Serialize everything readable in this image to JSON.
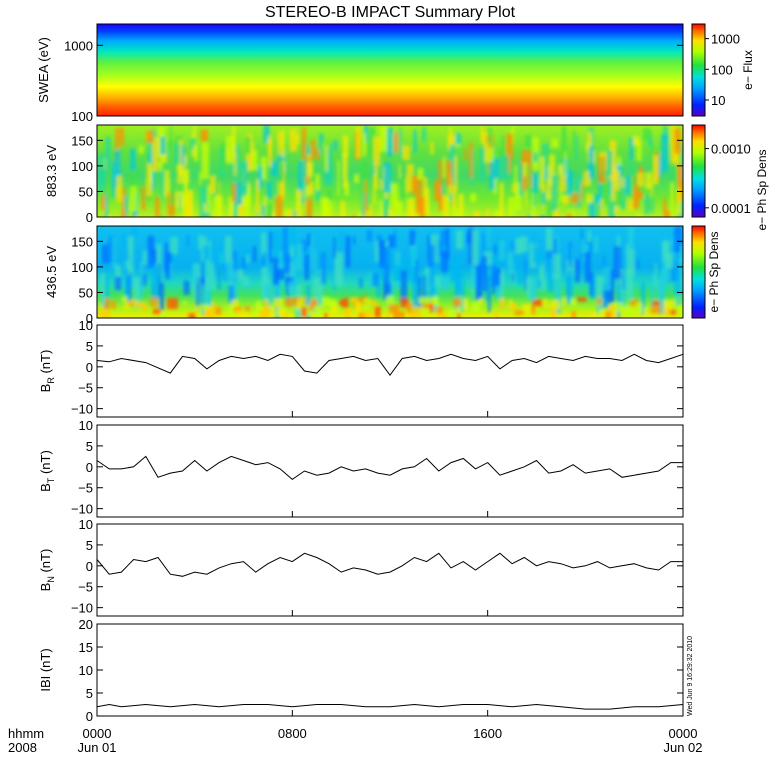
{
  "chart_data": [
    {
      "type": "heatmap",
      "title": "STEREO-B IMPACT Summary Plot",
      "ylabel": "SWEA (eV)",
      "yscale": "log",
      "ylim": [
        100,
        2000
      ],
      "yticks": [
        {
          "v": 100,
          "label": "100"
        },
        {
          "v": 1000,
          "label": "1000"
        }
      ],
      "colorbar_label": "e− Flux",
      "colorbar_scale": "log",
      "colorbar_range": [
        3,
        3000
      ],
      "colorbar_ticks": [
        {
          "v": 10,
          "label": "10"
        },
        {
          "v": 100,
          "label": "100"
        },
        {
          "v": 1000,
          "label": "1000"
        }
      ]
    },
    {
      "type": "heatmap",
      "ylabel": "883.3 eV",
      "ylim": [
        0,
        180
      ],
      "yticks": [
        {
          "v": 0,
          "label": "0"
        },
        {
          "v": 50,
          "label": "50"
        },
        {
          "v": 100,
          "label": "100"
        },
        {
          "v": 150,
          "label": "150"
        }
      ],
      "colorbar_label": "e− Ph Sp Dens",
      "colorbar_scale": "log",
      "colorbar_range": [
        7e-05,
        0.0025
      ],
      "colorbar_ticks": [
        {
          "v": 0.0001,
          "label": "0.0001"
        },
        {
          "v": 0.001,
          "label": "0.0010"
        }
      ]
    },
    {
      "type": "heatmap",
      "ylabel": "436.5 eV",
      "ylim": [
        0,
        180
      ],
      "yticks": [
        {
          "v": 0,
          "label": "0"
        },
        {
          "v": 50,
          "label": "50"
        },
        {
          "v": 100,
          "label": "100"
        },
        {
          "v": 150,
          "label": "150"
        }
      ],
      "colorbar_label": "e− Ph Sp Dens",
      "colorbar_scale": "log",
      "colorbar_range": [
        5e-05,
        0.002
      ],
      "colorbar_ticks": []
    },
    {
      "type": "line",
      "ylabel_main": "B",
      "ylabel_sub": "R",
      "ylabel_unit": "(nT)",
      "ylim": [
        -12,
        10
      ],
      "yticks": [
        {
          "v": 10,
          "label": "10"
        },
        {
          "v": 5,
          "label": "5"
        },
        {
          "v": 0,
          "label": "0"
        },
        {
          "v": -5,
          "label": "−5"
        },
        {
          "v": -10,
          "label": "−10"
        }
      ],
      "x": [
        0,
        0.5,
        1,
        2,
        3,
        3.5,
        4,
        4.5,
        5,
        5.5,
        6,
        6.5,
        7,
        7.5,
        8,
        8.5,
        9,
        9.5,
        10,
        10.5,
        11,
        11.5,
        12,
        12.5,
        13,
        13.5,
        14,
        14.5,
        15,
        15.5,
        16,
        16.5,
        17,
        17.5,
        18,
        18.5,
        19,
        19.5,
        20,
        20.5,
        21,
        21.5,
        22,
        22.5,
        23,
        23.5,
        24
      ],
      "y": [
        1.5,
        1.2,
        2.0,
        1.0,
        -1.5,
        2.5,
        2.0,
        -0.5,
        1.5,
        2.5,
        2.0,
        2.5,
        1.5,
        3.0,
        2.5,
        -1.0,
        -1.5,
        1.5,
        2.0,
        2.5,
        1.5,
        2.0,
        -2.0,
        2.0,
        2.5,
        1.5,
        2.0,
        3.0,
        2.0,
        1.5,
        2.5,
        -0.5,
        1.5,
        2.0,
        1.0,
        2.5,
        2.0,
        1.5,
        2.5,
        2.0,
        2.0,
        1.5,
        3.0,
        1.5,
        1.0,
        2.0,
        3.0
      ]
    },
    {
      "type": "line",
      "ylabel_main": "B",
      "ylabel_sub": "T",
      "ylabel_unit": "(nT)",
      "ylim": [
        -12,
        10
      ],
      "yticks": [
        {
          "v": 10,
          "label": "10"
        },
        {
          "v": 5,
          "label": "5"
        },
        {
          "v": 0,
          "label": "0"
        },
        {
          "v": -5,
          "label": "−5"
        },
        {
          "v": -10,
          "label": "−10"
        }
      ],
      "x": [
        0,
        0.5,
        1,
        1.5,
        2,
        2.5,
        3,
        3.5,
        4,
        4.5,
        5,
        5.5,
        6,
        6.5,
        7,
        7.5,
        8,
        8.5,
        9,
        9.5,
        10,
        10.5,
        11,
        11.5,
        12,
        12.5,
        13,
        13.5,
        14,
        14.5,
        15,
        15.5,
        16,
        16.5,
        17,
        17.5,
        18,
        18.5,
        19,
        19.5,
        20,
        20.5,
        21,
        21.5,
        22,
        22.5,
        23,
        23.5,
        24
      ],
      "y": [
        1.5,
        -0.5,
        -0.5,
        0.0,
        2.5,
        -2.5,
        -1.5,
        -1.0,
        1.5,
        -1.0,
        1.0,
        2.5,
        1.5,
        0.5,
        1.0,
        -0.5,
        -3.0,
        -1.0,
        -2.0,
        -1.5,
        0.0,
        -1.0,
        -0.5,
        -1.5,
        -2.0,
        -0.5,
        0.0,
        2.0,
        -1.0,
        1.0,
        2.0,
        -0.5,
        1.0,
        -2.0,
        -1.0,
        0.0,
        1.5,
        -1.5,
        -1.0,
        0.5,
        -1.5,
        -1.0,
        -0.5,
        -2.5,
        -2.0,
        -1.5,
        -1.0,
        1.0,
        1.0
      ]
    },
    {
      "type": "line",
      "ylabel_main": "B",
      "ylabel_sub": "N",
      "ylabel_unit": "(nT)",
      "ylim": [
        -12,
        10
      ],
      "yticks": [
        {
          "v": 10,
          "label": "10"
        },
        {
          "v": 5,
          "label": "5"
        },
        {
          "v": 0,
          "label": "0"
        },
        {
          "v": -5,
          "label": "−5"
        },
        {
          "v": -10,
          "label": "−10"
        }
      ],
      "x": [
        0,
        0.5,
        1,
        1.5,
        2,
        2.5,
        3,
        3.5,
        4,
        4.5,
        5,
        5.5,
        6,
        6.5,
        7,
        7.5,
        8,
        8.5,
        9,
        9.5,
        10,
        10.5,
        11,
        11.5,
        12,
        12.5,
        13,
        13.5,
        14,
        14.5,
        15,
        15.5,
        16,
        16.5,
        17,
        17.5,
        18,
        18.5,
        19,
        19.5,
        20,
        20.5,
        21,
        21.5,
        22,
        22.5,
        23,
        23.5,
        24
      ],
      "y": [
        1.5,
        -2.0,
        -1.5,
        1.5,
        1.0,
        2.0,
        -2.0,
        -2.5,
        -1.5,
        -2.0,
        -0.5,
        0.5,
        1.0,
        -1.5,
        0.5,
        2.0,
        1.0,
        3.0,
        2.0,
        0.5,
        -1.5,
        -0.5,
        -1.0,
        -2.0,
        -1.5,
        0.0,
        2.0,
        1.0,
        3.0,
        -0.5,
        1.0,
        -1.0,
        1.0,
        3.0,
        0.5,
        2.0,
        0.0,
        1.0,
        0.5,
        -0.5,
        0.0,
        1.0,
        -0.5,
        0.0,
        0.5,
        -0.5,
        -1.0,
        1.0,
        1.0
      ]
    },
    {
      "type": "line",
      "ylabel": "IBI (nT)",
      "ylim": [
        0,
        20
      ],
      "yticks": [
        {
          "v": 0,
          "label": "0"
        },
        {
          "v": 5,
          "label": "5"
        },
        {
          "v": 10,
          "label": "10"
        },
        {
          "v": 15,
          "label": "15"
        },
        {
          "v": 20,
          "label": "20"
        }
      ],
      "x": [
        0,
        0.5,
        1,
        2,
        3,
        4,
        5,
        6,
        7,
        8,
        9,
        10,
        11,
        12,
        13,
        14,
        15,
        16,
        17,
        18,
        19,
        20,
        21,
        22,
        23,
        24
      ],
      "y": [
        2.0,
        2.5,
        2.0,
        2.5,
        2.0,
        2.5,
        2.0,
        2.5,
        2.5,
        2.0,
        2.5,
        2.5,
        2.0,
        2.0,
        2.5,
        2.0,
        2.5,
        2.5,
        2.0,
        2.5,
        2.0,
        1.5,
        1.5,
        2.0,
        2.0,
        2.5
      ],
      "side_text": "Wed Jun  9 16:29:32 2010"
    }
  ],
  "xaxis": {
    "hhmm_label": "hhmm",
    "year_label": "2008",
    "ticks": [
      {
        "h": 0,
        "top": "0000",
        "bottom": "Jun 01"
      },
      {
        "h": 8,
        "top": "0800",
        "bottom": ""
      },
      {
        "h": 16,
        "top": "1600",
        "bottom": ""
      },
      {
        "h": 24,
        "top": "0000",
        "bottom": "Jun 02"
      }
    ],
    "range_hours": [
      0,
      24
    ]
  }
}
